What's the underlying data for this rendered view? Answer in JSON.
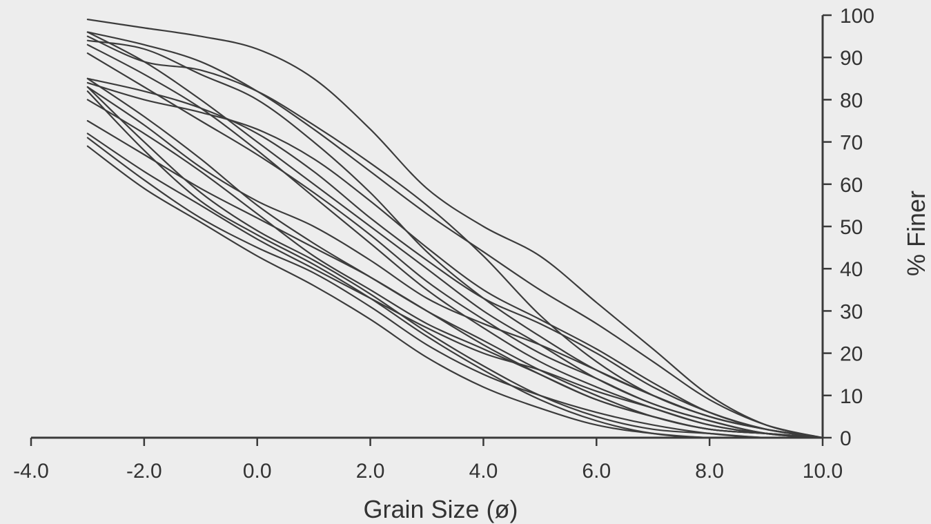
{
  "chart_data": {
    "type": "line",
    "title": "",
    "xlabel": "Grain Size (ø)",
    "ylabel": "% Finer",
    "xlim": [
      -4.0,
      10.0
    ],
    "ylim": [
      0,
      100
    ],
    "x_ticks": [
      -4.0,
      -2.0,
      0.0,
      2.0,
      4.0,
      6.0,
      8.0,
      10.0
    ],
    "x_tick_labels": [
      "-4.0",
      "-2.0",
      "0.0",
      "2.0",
      "4.0",
      "6.0",
      "8.0",
      "10.0"
    ],
    "y_ticks": [
      0,
      10,
      20,
      30,
      40,
      50,
      60,
      70,
      80,
      90,
      100
    ],
    "y_tick_labels": [
      "0",
      "10",
      "20",
      "30",
      "40",
      "50",
      "60",
      "70",
      "80",
      "90",
      "100"
    ],
    "y_axis_side": "right",
    "grid": false,
    "legend": "none",
    "line_color": "#3c3c3c",
    "x": [
      -3.0,
      -2.0,
      -1.0,
      0.0,
      1.0,
      2.0,
      3.0,
      4.0,
      5.0,
      6.0,
      7.0,
      8.0,
      9.0,
      10.0
    ],
    "series": [
      {
        "values": [
          99,
          97,
          95,
          92,
          85,
          73,
          59,
          50,
          43,
          32,
          21,
          10,
          3,
          0
        ]
      },
      {
        "values": [
          96,
          93,
          89,
          82,
          73,
          63,
          53,
          44,
          35,
          27,
          18,
          9,
          3,
          0
        ]
      },
      {
        "values": [
          95,
          89,
          87,
          82,
          74,
          65,
          55,
          43,
          29,
          18,
          10,
          5,
          2,
          0
        ]
      },
      {
        "values": [
          94,
          92,
          86,
          80,
          70,
          58,
          44,
          33,
          24,
          16,
          10,
          5,
          2,
          0
        ]
      },
      {
        "values": [
          96,
          89,
          80,
          70,
          60,
          50,
          40,
          30,
          22,
          14,
          8,
          4,
          1,
          0
        ]
      },
      {
        "values": [
          93,
          86,
          78,
          68,
          57,
          46,
          35,
          26,
          18,
          12,
          7,
          3,
          1,
          0
        ]
      },
      {
        "values": [
          91,
          83,
          75,
          67,
          58,
          48,
          37,
          28,
          20,
          14,
          8,
          4,
          1,
          0
        ]
      },
      {
        "values": [
          85,
          82,
          78,
          72,
          63,
          52,
          42,
          33,
          27,
          20,
          12,
          6,
          2,
          0
        ]
      },
      {
        "values": [
          84,
          80,
          77,
          73,
          66,
          56,
          45,
          35,
          28,
          21,
          13,
          6,
          2,
          0
        ]
      },
      {
        "values": [
          83,
          74,
          64,
          56,
          50,
          42,
          33,
          27,
          22,
          16,
          10,
          5,
          2,
          0
        ]
      },
      {
        "values": [
          85,
          76,
          66,
          55,
          46,
          38,
          30,
          23,
          16,
          10,
          5,
          2,
          1,
          0
        ]
      },
      {
        "values": [
          83,
          70,
          58,
          49,
          42,
          34,
          25,
          17,
          10,
          5,
          2,
          1,
          0,
          0
        ]
      },
      {
        "values": [
          82,
          68,
          56,
          48,
          41,
          33,
          24,
          16,
          9,
          4,
          1,
          0,
          0,
          0
        ]
      },
      {
        "values": [
          80,
          72,
          63,
          53,
          43,
          35,
          27,
          21,
          15,
          9,
          5,
          2,
          1,
          0
        ]
      },
      {
        "values": [
          75,
          67,
          59,
          52,
          45,
          38,
          30,
          22,
          15,
          9,
          5,
          2,
          1,
          0
        ]
      },
      {
        "values": [
          72,
          63,
          55,
          47,
          40,
          33,
          26,
          20,
          16,
          11,
          7,
          3,
          1,
          0
        ]
      },
      {
        "values": [
          71,
          61,
          52,
          45,
          39,
          31,
          22,
          15,
          10,
          6,
          3,
          1,
          0,
          0
        ]
      },
      {
        "values": [
          69,
          59,
          51,
          43,
          36,
          28,
          19,
          12,
          7,
          3,
          1,
          0,
          0,
          0
        ]
      }
    ]
  }
}
